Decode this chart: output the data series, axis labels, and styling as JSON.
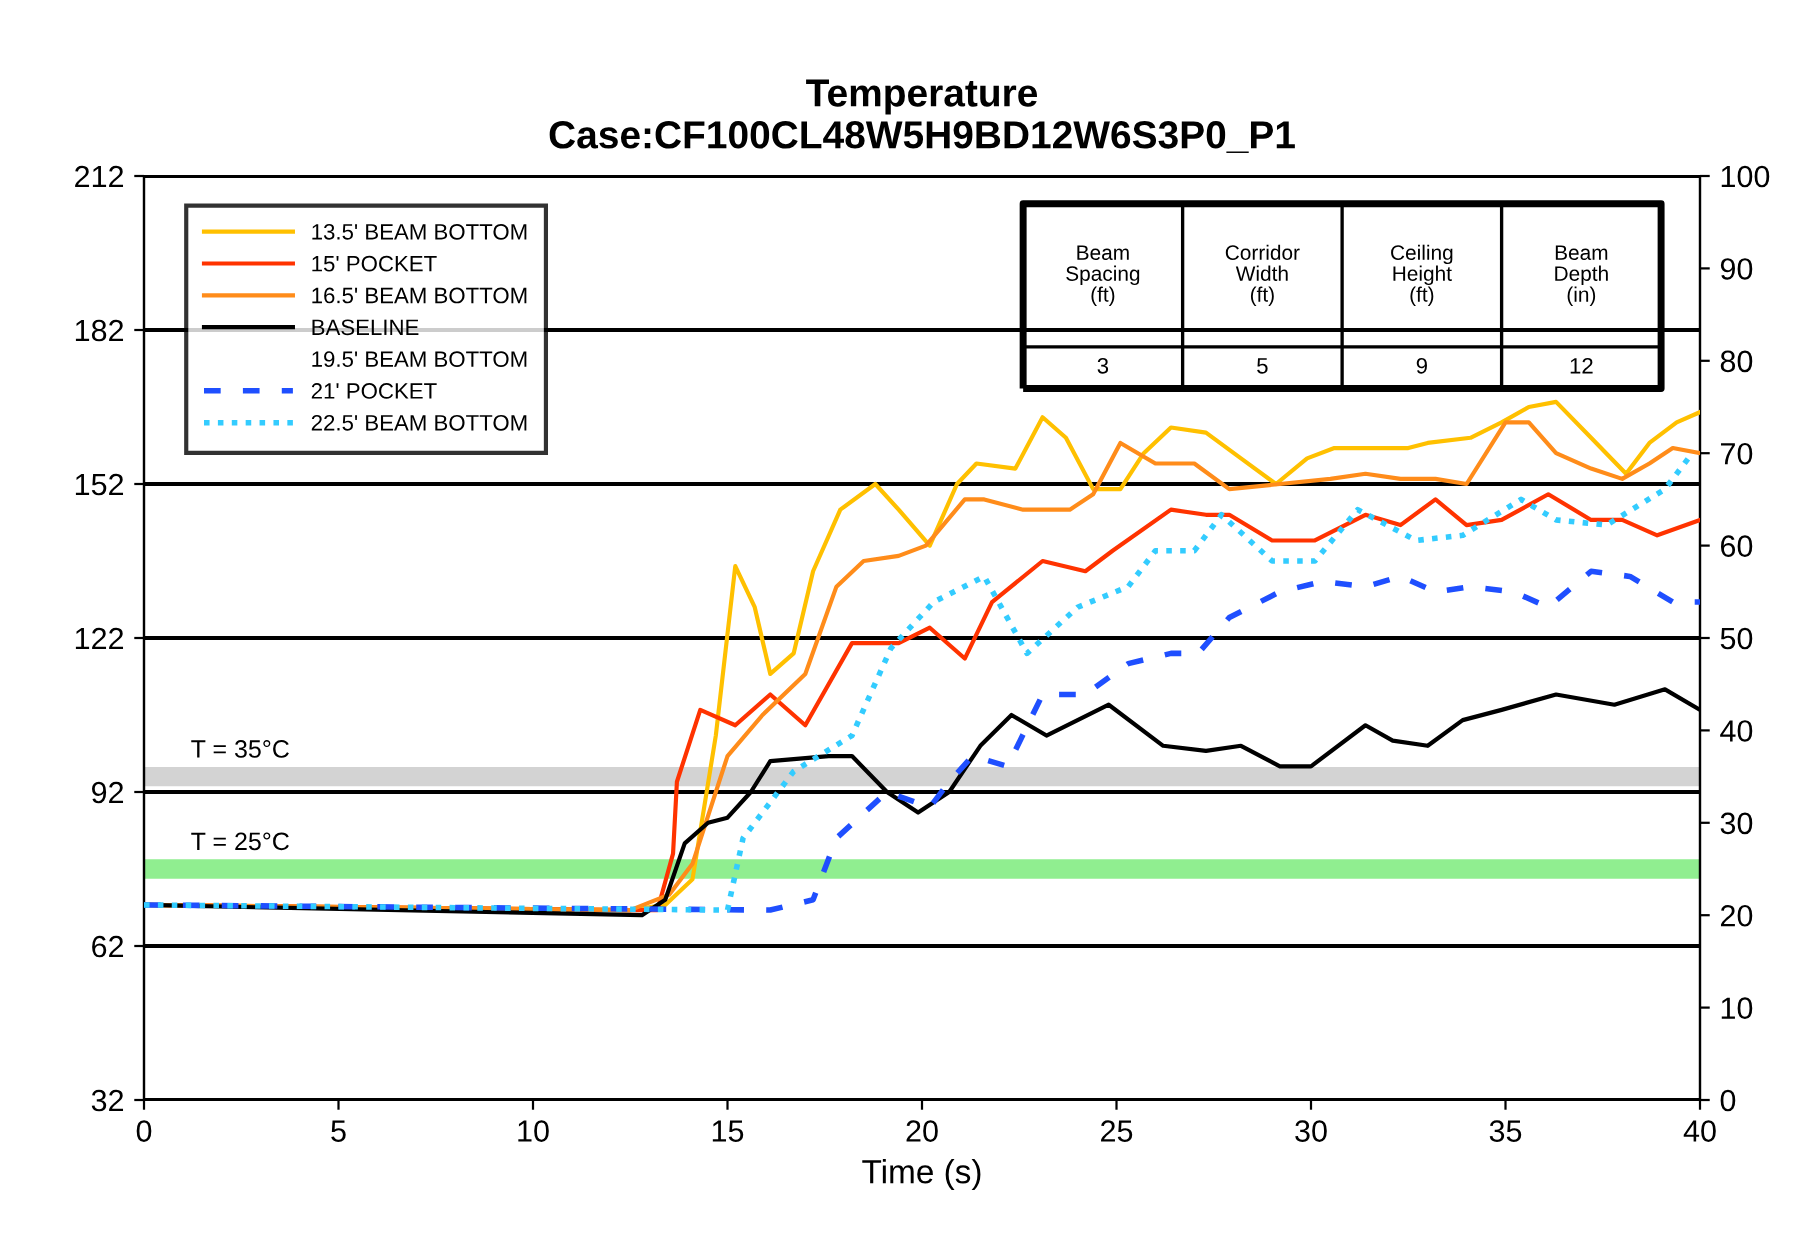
{
  "chart_data": {
    "type": "line",
    "title": "Temperature\nCase:CF100CL48W5H9BD12W6S3P0_P1",
    "xlabel": "Time (s)",
    "xlim": [
      0,
      40
    ],
    "xticks": [
      0,
      5,
      10,
      15,
      20,
      25,
      30,
      35,
      40
    ],
    "ylim": [
      32,
      212
    ],
    "yticks": [
      32,
      62,
      92,
      122,
      152,
      182,
      212
    ],
    "y2lim": [
      0,
      100
    ],
    "y2ticks": [
      0,
      10,
      20,
      30,
      40,
      50,
      60,
      70,
      80,
      90,
      100
    ],
    "grid": "y",
    "legend": "top left",
    "ref_lines": [
      {
        "axis": "y2",
        "value": 35,
        "label": "T = 35°C",
        "color": "#d3d3d3"
      },
      {
        "axis": "y2",
        "value": 25,
        "label": "T = 25°C",
        "color": "#90ee90"
      }
    ],
    "annotations": [
      "Beam\nSpacing\n(ft)",
      "Corridor\nWidth\n(ft)",
      "Ceiling\nHeight\n(ft)",
      "Beam\nDepth\n(in)",
      "3",
      "5",
      "9",
      "12"
    ],
    "series": [
      {
        "name": "13.5' BEAM BOTTOM",
        "color": "#ffc000",
        "line_style": "solid",
        "x": [
          0,
          12.5,
          13.4,
          14.1,
          14.7,
          15.2,
          15.7,
          16.1,
          16.7,
          17.2,
          17.9,
          18.8,
          19.4,
          20.2,
          20.9,
          21.4,
          22.4,
          23.1,
          23.7,
          24.4,
          25.1,
          25.7,
          26.4,
          27.3,
          28.2,
          29.1,
          29.9,
          30.6,
          32.5,
          33.0,
          34.1,
          34.9,
          35.6,
          36.3,
          37.2,
          38.1,
          38.7,
          39.4,
          40
        ],
        "values": [
          70,
          69,
          70,
          75,
          103,
          136,
          128,
          115,
          119,
          135,
          147,
          152,
          147,
          140,
          152,
          156,
          155,
          165,
          161,
          151,
          151,
          158,
          163,
          162,
          157,
          152,
          157,
          159,
          159,
          160,
          161,
          164,
          167,
          168,
          161,
          154,
          160,
          164,
          166
        ]
      },
      {
        "name": "15' POCKET",
        "color": "#ff3300",
        "line_style": "solid",
        "x": [
          0,
          12.5,
          13.2,
          13.6,
          13.7,
          14.3,
          15.2,
          16.1,
          17.0,
          18.2,
          19.4,
          20.2,
          21.1,
          21.8,
          23.1,
          24.2,
          24.9,
          26.4,
          27.3,
          27.9,
          29.0,
          30.1,
          31.4,
          32.3,
          33.2,
          34.0,
          34.9,
          36.1,
          37.2,
          38.0,
          38.9,
          40
        ],
        "values": [
          70,
          69,
          69,
          80,
          94,
          108,
          105,
          111,
          105,
          121,
          121,
          124,
          118,
          129,
          137,
          135,
          139,
          147,
          146,
          146,
          141,
          141,
          146,
          144,
          149,
          144,
          145,
          150,
          145,
          145,
          142,
          145
        ]
      },
      {
        "name": "16.5' BEAM BOTTOM",
        "color": "#ff8c1a",
        "line_style": "solid",
        "x": [
          0,
          12.5,
          13.5,
          14.1,
          15.0,
          15.9,
          17.0,
          17.8,
          18.5,
          19.4,
          20.1,
          21.1,
          21.6,
          22.6,
          23.8,
          24.4,
          25.1,
          26.0,
          27.0,
          27.9,
          29.2,
          30.5,
          31.4,
          32.3,
          33.2,
          34.0,
          35.0,
          35.6,
          36.3,
          37.2,
          38.0,
          38.7,
          39.3,
          40
        ],
        "values": [
          70,
          69,
          72,
          78,
          99,
          107,
          115,
          132,
          137,
          138,
          140,
          149,
          149,
          147,
          147,
          150,
          160,
          156,
          156,
          151,
          152,
          153,
          154,
          153,
          153,
          152,
          164,
          164,
          158,
          155,
          153,
          156,
          159,
          158
        ]
      },
      {
        "name": "BASELINE",
        "color": "#000000",
        "line_style": "solid",
        "x": [
          0,
          12.8,
          13.4,
          13.9,
          14.5,
          15.0,
          15.6,
          16.1,
          17.6,
          18.2,
          19.1,
          19.9,
          20.7,
          21.5,
          22.3,
          23.2,
          24.8,
          26.2,
          27.3,
          28.2,
          29.2,
          30.0,
          31.4,
          32.1,
          33.0,
          33.9,
          34.9,
          36.3,
          37.8,
          39.1,
          40
        ],
        "values": [
          70,
          68,
          71,
          82,
          86,
          87,
          92,
          98,
          99,
          99,
          92,
          88,
          92,
          101,
          107,
          103,
          109,
          101,
          100,
          101,
          97,
          97,
          105,
          102,
          101,
          106,
          108,
          111,
          109,
          112,
          108
        ]
      },
      {
        "name": "19.5' BEAM BOTTOM"
      },
      {
        "name": "21' POCKET",
        "color": "#1f4fff",
        "line_style": "dashed",
        "x": [
          0,
          16.1,
          17.2,
          17.8,
          19.1,
          20.2,
          20.7,
          21.3,
          22.2,
          23.1,
          24.2,
          25.3,
          26.4,
          27.1,
          27.9,
          29.2,
          30.3,
          31.4,
          32.3,
          33.2,
          34.1,
          35.2,
          36.1,
          37.2,
          38.2,
          39.3,
          40
        ],
        "values": [
          70,
          69,
          71,
          83,
          92,
          89,
          94,
          99,
          97,
          111,
          111,
          117,
          119,
          119,
          126,
          131,
          133,
          132,
          134,
          131,
          132,
          131,
          128,
          135,
          134,
          129,
          129
        ]
      },
      {
        "name": "22.5' BEAM BOTTOM",
        "color": "#33ccff",
        "line_style": "dotted",
        "x": [
          0,
          15.0,
          15.4,
          16.7,
          18.2,
          19.2,
          20.3,
          21.6,
          22.7,
          24.0,
          25.3,
          26.0,
          27.0,
          27.7,
          29.0,
          30.1,
          31.2,
          32.7,
          33.9,
          35.4,
          36.3,
          37.6,
          39.1,
          39.8
        ],
        "values": [
          70,
          69,
          83,
          96,
          103,
          120,
          129,
          134,
          119,
          128,
          132,
          139,
          139,
          146,
          137,
          137,
          147,
          141,
          142,
          149,
          145,
          144,
          151,
          158
        ]
      }
    ]
  }
}
